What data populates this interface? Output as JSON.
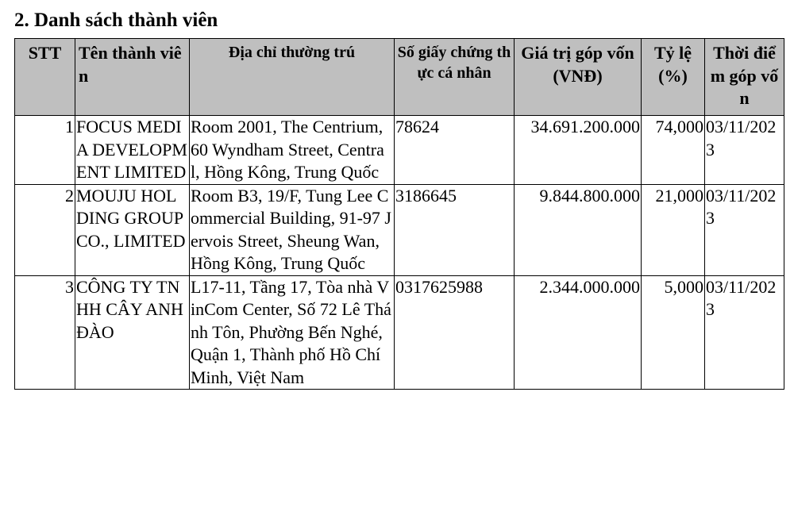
{
  "section": {
    "title": "2. Danh sách thành viên"
  },
  "table": {
    "headers": {
      "stt": "STT",
      "name": "Tên thành viên",
      "address": "Địa chỉ thường trú",
      "id_number": "Số giấy chứng thực cá nhân",
      "capital": "Giá trị góp vốn(VNĐ)",
      "ratio": "Tỷ lệ (%)",
      "time": "Thời điểm góp vốn"
    },
    "rows": [
      {
        "stt": "1",
        "name": "FOCUS MEDIA DEVELOPMENT LIMITED",
        "address": "Room 2001, The Centrium, 60 Wyndham Street, Central, Hồng Kông, Trung Quốc",
        "id_number": "78624",
        "capital": "34.691.200.000",
        "ratio": "74,000",
        "time": "03/11/2023"
      },
      {
        "stt": "2",
        "name": "MOUJU HOLDING GROUP CO., LIMITED",
        "address": "Room B3, 19/F, Tung Lee Commercial Building, 91-97 Jervois Street, Sheung Wan, Hồng Kông, Trung Quốc",
        "id_number": "3186645",
        "capital": "9.844.800.000",
        "ratio": "21,000",
        "time": "03/11/2023"
      },
      {
        "stt": "3",
        "name": "CÔNG TY TNHH CÂY ANH ĐÀO",
        "address": "L17-11, Tầng 17, Tòa nhà VinCom Center, Số 72 Lê Thánh Tôn, Phường Bến Nghé, Quận 1, Thành phố Hồ Chí Minh, Việt Nam",
        "id_number": "0317625988",
        "capital": "2.344.000.000",
        "ratio": "5,000",
        "time": "03/11/2023"
      }
    ]
  }
}
